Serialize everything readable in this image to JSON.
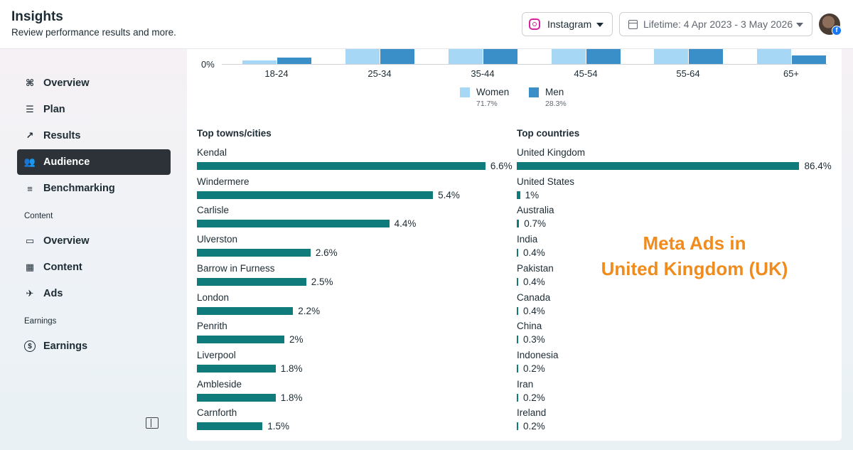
{
  "header": {
    "title": "Insights",
    "subtitle": "Review performance results and more.",
    "platform": "Instagram",
    "date_range": "Lifetime: 4 Apr 2023 - 3 May 2026"
  },
  "sidebar": {
    "items": [
      {
        "label": "Overview",
        "icon": "overview-icon"
      },
      {
        "label": "Plan",
        "icon": "plan-icon"
      },
      {
        "label": "Results",
        "icon": "results-icon"
      },
      {
        "label": "Audience",
        "icon": "audience-icon",
        "active": true
      },
      {
        "label": "Benchmarking",
        "icon": "benchmarking-icon"
      }
    ],
    "content_label": "Content",
    "content_items": [
      {
        "label": "Overview",
        "icon": "content-overview-icon"
      },
      {
        "label": "Content",
        "icon": "content-grid-icon"
      },
      {
        "label": "Ads",
        "icon": "rocket-icon"
      }
    ],
    "earnings_label": "Earnings",
    "earnings_items": [
      {
        "label": "Earnings",
        "icon": "dollar-icon"
      }
    ]
  },
  "age_gender": {
    "zero_label": "0%",
    "age_groups": [
      "18-24",
      "25-34",
      "35-44",
      "45-54",
      "55-64",
      "65+"
    ],
    "legend": [
      {
        "name": "Women",
        "value": "71.7%",
        "color": "#a6d8f5"
      },
      {
        "name": "Men",
        "value": "28.3%",
        "color": "#3b8fc9"
      }
    ]
  },
  "top_cities": {
    "title": "Top towns/cities",
    "rows": [
      {
        "name": "Kendal",
        "value": "6.6%",
        "pct": 6.6
      },
      {
        "name": "Windermere",
        "value": "5.4%",
        "pct": 5.4
      },
      {
        "name": "Carlisle",
        "value": "4.4%",
        "pct": 4.4
      },
      {
        "name": "Ulverston",
        "value": "2.6%",
        "pct": 2.6
      },
      {
        "name": "Barrow in Furness",
        "value": "2.5%",
        "pct": 2.5
      },
      {
        "name": "London",
        "value": "2.2%",
        "pct": 2.2
      },
      {
        "name": "Penrith",
        "value": "2%",
        "pct": 2.0
      },
      {
        "name": "Liverpool",
        "value": "1.8%",
        "pct": 1.8
      },
      {
        "name": "Ambleside",
        "value": "1.8%",
        "pct": 1.8
      },
      {
        "name": "Carnforth",
        "value": "1.5%",
        "pct": 1.5
      }
    ]
  },
  "top_countries": {
    "title": "Top countries",
    "rows": [
      {
        "name": "United Kingdom",
        "value": "86.4%",
        "pct": 86.4
      },
      {
        "name": "United States",
        "value": "1%",
        "pct": 1.0
      },
      {
        "name": "Australia",
        "value": "0.7%",
        "pct": 0.7
      },
      {
        "name": "India",
        "value": "0.4%",
        "pct": 0.4
      },
      {
        "name": "Pakistan",
        "value": "0.4%",
        "pct": 0.4
      },
      {
        "name": "Canada",
        "value": "0.4%",
        "pct": 0.4
      },
      {
        "name": "China",
        "value": "0.3%",
        "pct": 0.3
      },
      {
        "name": "Indonesia",
        "value": "0.2%",
        "pct": 0.2
      },
      {
        "name": "Iran",
        "value": "0.2%",
        "pct": 0.2
      },
      {
        "name": "Ireland",
        "value": "0.2%",
        "pct": 0.2
      }
    ]
  },
  "overlay": {
    "line1": "Meta Ads in",
    "line2": "United Kingdom (UK)"
  },
  "colors": {
    "bar": "#0f7b7b",
    "women": "#a6d8f5",
    "men": "#3b8fc9",
    "overlay": "#f08c1e",
    "active_nav": "#2c3238"
  }
}
